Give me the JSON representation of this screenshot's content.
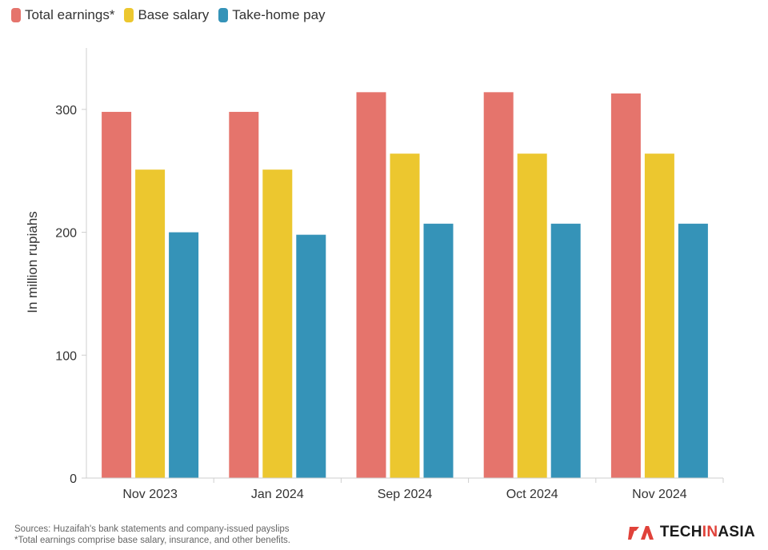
{
  "chart_data": {
    "type": "bar",
    "categories": [
      "Nov 2023",
      "Jan 2024",
      "Sep 2024",
      "Oct 2024",
      "Nov 2024"
    ],
    "series": [
      {
        "name": "Total earnings*",
        "color": "#e5746c",
        "values": [
          298,
          298,
          314,
          314,
          313
        ]
      },
      {
        "name": "Base salary",
        "color": "#ecc72f",
        "values": [
          251,
          251,
          264,
          264,
          264
        ]
      },
      {
        "name": "Take-home pay",
        "color": "#3593b8",
        "values": [
          200,
          198,
          207,
          207,
          207
        ]
      }
    ],
    "ylabel": "In million rupiahs",
    "ylim": [
      0,
      350
    ],
    "yticks": [
      0,
      100,
      200,
      300
    ],
    "legend": "top-left"
  },
  "footer": {
    "sources": "Sources: Huzaifah's bank statements and company-issued payslips",
    "note": "*Total earnings comprise base salary, insurance, and other benefits."
  },
  "brand": {
    "prefix": "TECH",
    "middle": "IN",
    "suffix": "ASIA",
    "logo_color": "#e0423a"
  }
}
